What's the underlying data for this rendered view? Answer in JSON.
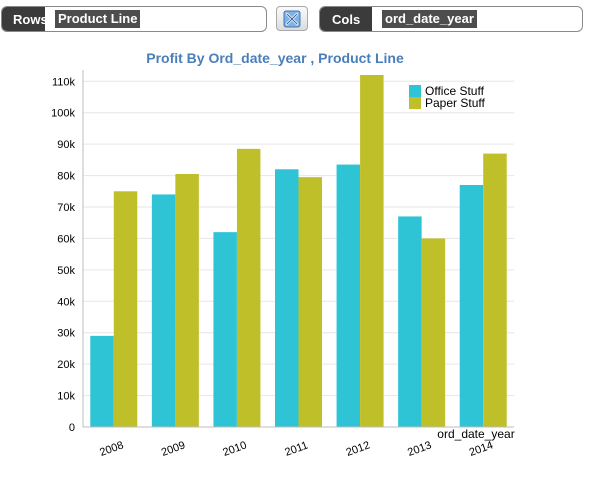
{
  "controls": {
    "rows_label": "Rows",
    "rows_value": "Product Line",
    "cols_label": "Cols",
    "cols_value": "ord_date_year",
    "swap_icon": "swap-axes-icon"
  },
  "chart_data": {
    "type": "bar",
    "title": "Profit By Ord_date_year , Product Line",
    "xlabel": "ord_date_year",
    "ylabel": "",
    "categories": [
      "2008",
      "2009",
      "2010",
      "2011",
      "2012",
      "2013",
      "2014"
    ],
    "series": [
      {
        "name": "Office Stuff",
        "color": "#2ec4d6",
        "values": [
          29000,
          74000,
          62000,
          82000,
          83500,
          67000,
          77000
        ]
      },
      {
        "name": "Paper Stuff",
        "color": "#bfbf2a",
        "values": [
          75000,
          80500,
          88500,
          79500,
          112000,
          60000,
          87000
        ]
      }
    ],
    "ylim": [
      0,
      112000
    ],
    "yticks": [
      0,
      10000,
      20000,
      30000,
      40000,
      50000,
      60000,
      70000,
      80000,
      90000,
      100000,
      110000
    ],
    "ytick_labels": [
      "0",
      "10k",
      "20k",
      "30k",
      "40k",
      "50k",
      "60k",
      "70k",
      "80k",
      "90k",
      "100k",
      "110k"
    ],
    "grid": true,
    "legend_position": "top-right"
  }
}
